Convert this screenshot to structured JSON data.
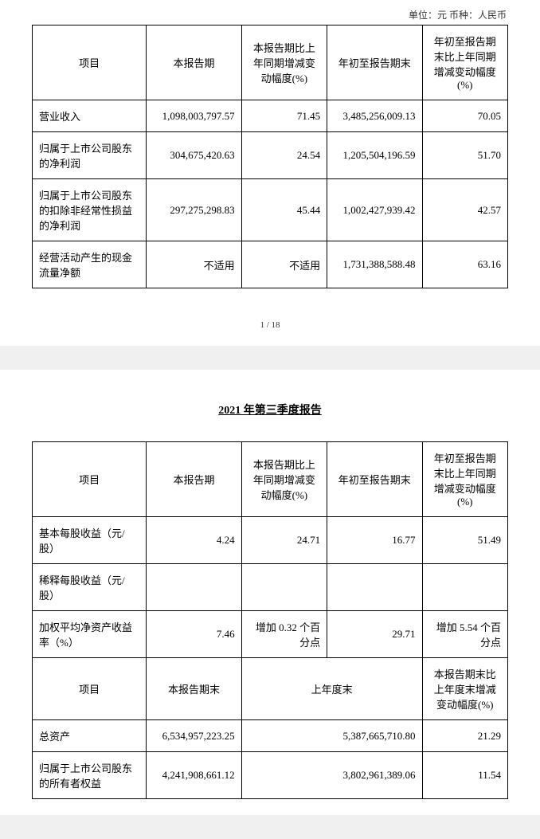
{
  "unit_label": "单位：元    币种：人民币",
  "page_number_text": "1 / 18",
  "report_title": "2021 年第三季度报告",
  "table1": {
    "headers": {
      "item": "项目",
      "current": "本报告期",
      "current_change": "本报告期比上年同期增减变动幅度(%)",
      "ytd": "年初至报告期末",
      "ytd_change": "年初至报告期末比上年同期增减变动幅度(%)"
    },
    "rows": [
      {
        "item": "营业收入",
        "current": "1,098,003,797.57",
        "current_change": "71.45",
        "ytd": "3,485,256,009.13",
        "ytd_change": "70.05"
      },
      {
        "item": "归属于上市公司股东的净利润",
        "current": "304,675,420.63",
        "current_change": "24.54",
        "ytd": "1,205,504,196.59",
        "ytd_change": "51.70"
      },
      {
        "item": "归属于上市公司股东的扣除非经常性损益的净利润",
        "current": "297,275,298.83",
        "current_change": "45.44",
        "ytd": "1,002,427,939.42",
        "ytd_change": "42.57"
      },
      {
        "item": "经营活动产生的现金流量净额",
        "current": "不适用",
        "current_change": "不适用",
        "ytd": "1,731,388,588.48",
        "ytd_change": "63.16"
      }
    ]
  },
  "table2": {
    "headers": {
      "item": "项目",
      "current": "本报告期",
      "current_change": "本报告期比上年同期增减变动幅度(%)",
      "ytd": "年初至报告期末",
      "ytd_change": "年初至报告期末比上年同期增减变动幅度(%)"
    },
    "rows_a": [
      {
        "item": "基本每股收益（元/股）",
        "current": "4.24",
        "current_change": "24.71",
        "ytd": "16.77",
        "ytd_change": "51.49"
      },
      {
        "item": "稀释每股收益（元/股）",
        "current": "",
        "current_change": "",
        "ytd": "",
        "ytd_change": ""
      },
      {
        "item": "加权平均净资产收益率（%）",
        "current": "7.46",
        "current_change": "增加 0.32 个百分点",
        "ytd": "29.71",
        "ytd_change": "增加 5.54 个百分点"
      }
    ],
    "headers2": {
      "item": "项目",
      "current_end": "本报告期末",
      "prev_end": "上年度末",
      "change": "本报告期末比上年度末增减变动幅度(%)"
    },
    "rows_b": [
      {
        "item": "总资产",
        "current_end": "6,534,957,223.25",
        "prev_end": "5,387,665,710.80",
        "change": "21.29"
      },
      {
        "item": "归属于上市公司股东的所有者权益",
        "current_end": "4,241,908,661.12",
        "prev_end": "3,802,961,389.06",
        "change": "11.54"
      }
    ]
  },
  "styles": {
    "font_size_body": 13,
    "font_size_small": 11,
    "font_size_title": 14,
    "border_color": "#000000",
    "background_page": "#ffffff",
    "background_body": "#f0f0f0",
    "text_color": "#000000",
    "col_widths_pct": [
      24,
      20,
      18,
      20,
      18
    ]
  }
}
